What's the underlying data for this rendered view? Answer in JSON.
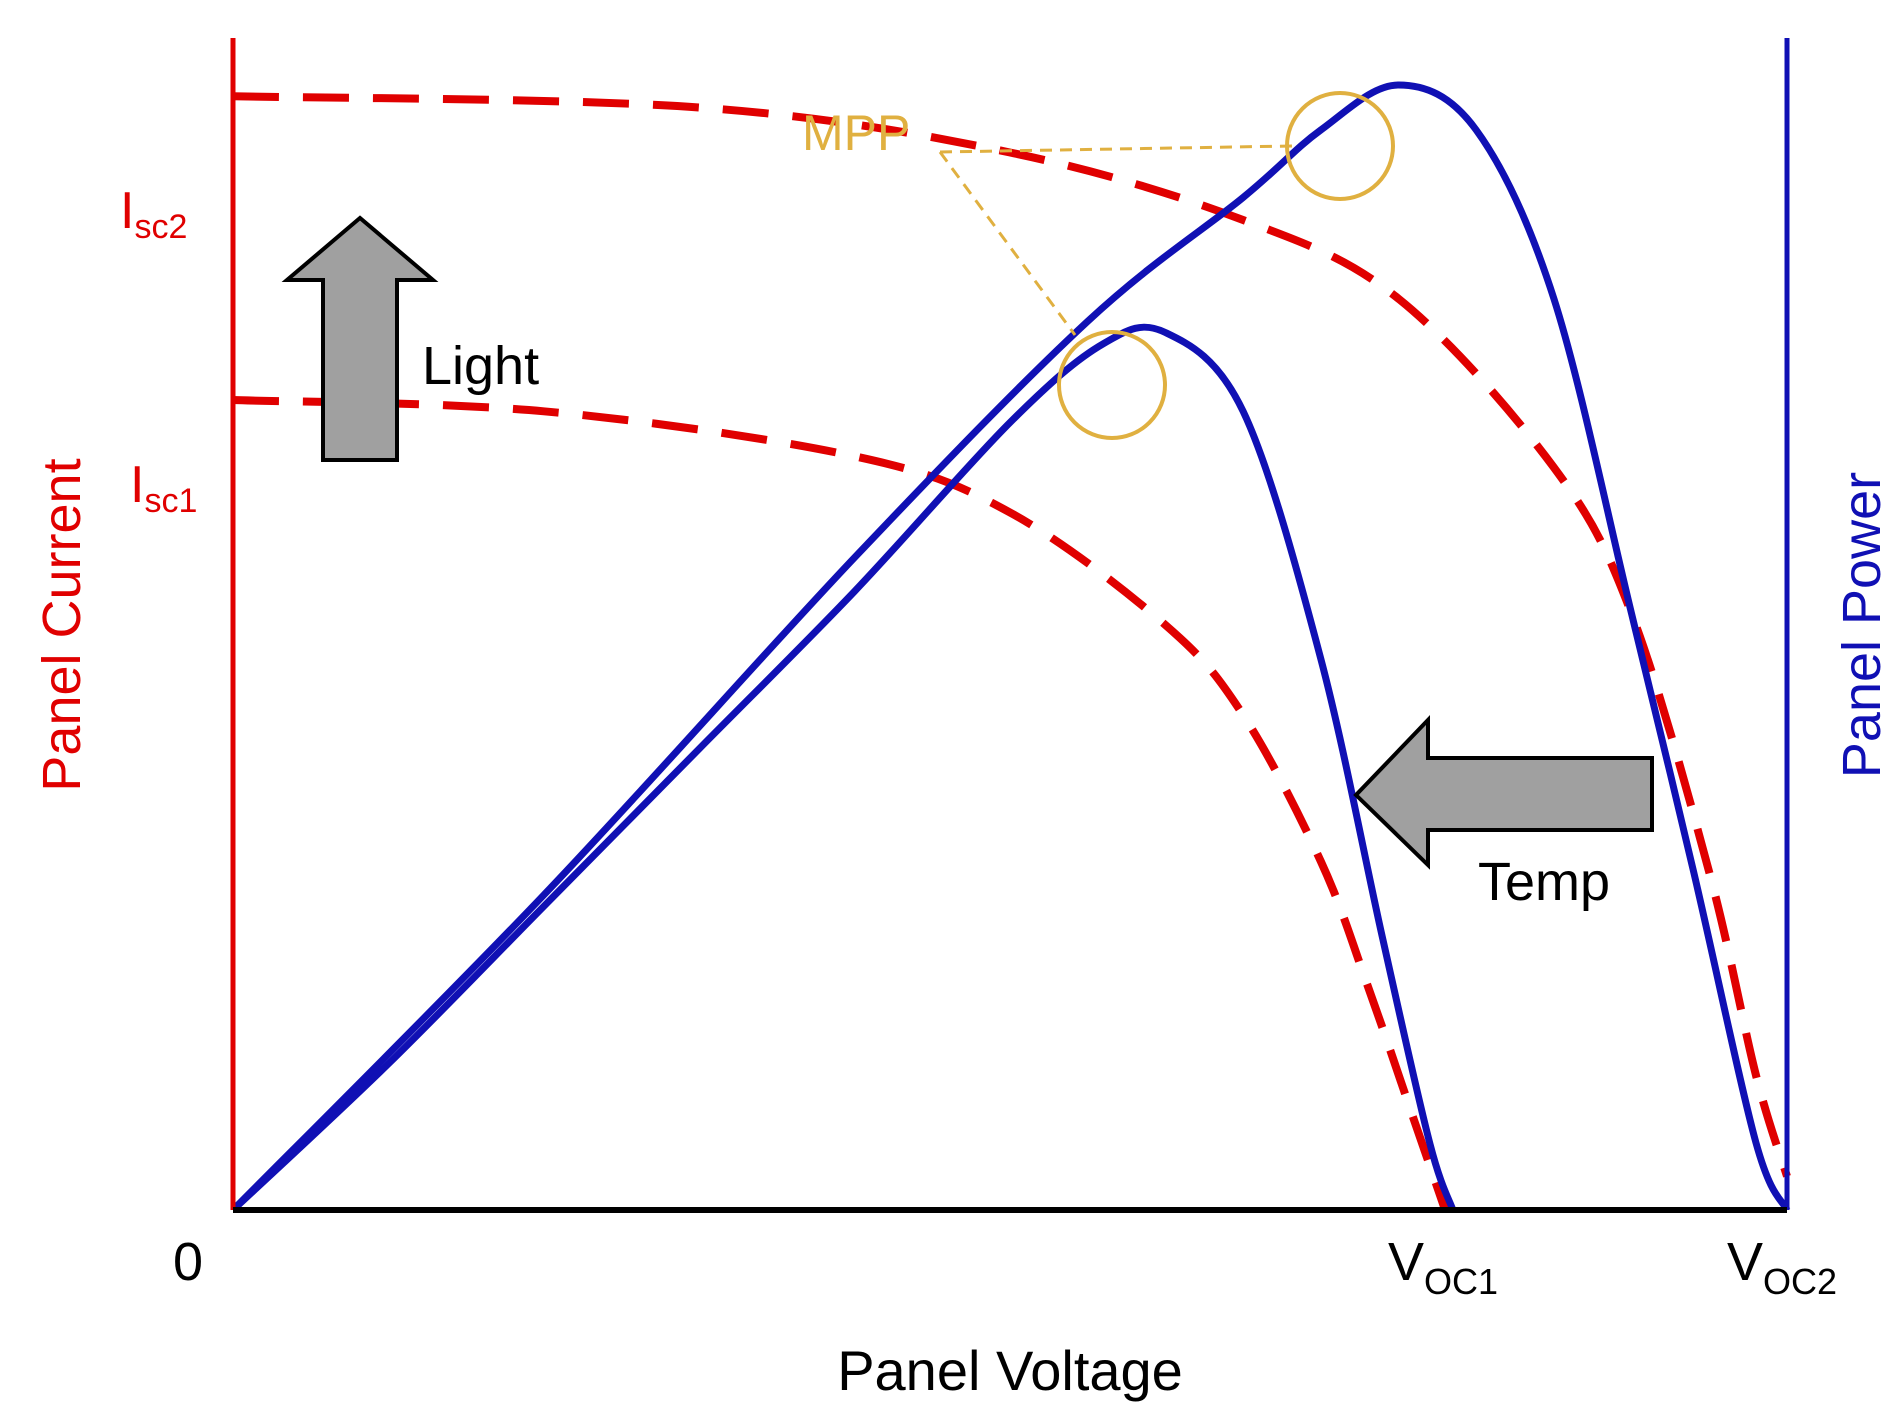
{
  "colors": {
    "current": "#e00000",
    "power": "#1010b4",
    "mpp": "#e0b040",
    "axis": "#000000",
    "arrow_fill": "#a0a0a0"
  },
  "labels": {
    "x_axis": "Panel Voltage",
    "y_left": "Panel Current",
    "y_right": "Panel Power",
    "origin": "0",
    "isc1_main": "I",
    "isc1_sub": "sc1",
    "isc2_main": "I",
    "isc2_sub": "sc2",
    "voc1_main": "V",
    "voc1_sub": "OC1",
    "voc2_main": "V",
    "voc2_sub": "OC2",
    "mpp": "MPP",
    "light": "Light",
    "temp": "Temp"
  },
  "chart_data": {
    "type": "line",
    "xlabel": "Panel Voltage",
    "ylabel": "Panel Current",
    "ylabel_right": "Panel Power",
    "xlim": [
      0,
      1
    ],
    "ylim": [
      0,
      1
    ],
    "x_ticks": [
      "0",
      "VOC1",
      "VOC2"
    ],
    "y_ticks": [
      "Isc1",
      "Isc2"
    ],
    "series": [
      {
        "style": "dashed",
        "axis": "left",
        "x": [
          0,
          0.2,
          0.4,
          0.5,
          0.6,
          0.65,
          0.7,
          0.73,
          0.76,
          0.78
        ],
        "y": [
          0.72,
          0.71,
          0.67,
          0.62,
          0.52,
          0.44,
          0.31,
          0.2,
          0.08,
          0
        ]
      },
      {
        "style": "dashed",
        "axis": "left",
        "x": [
          0,
          0.3,
          0.5,
          0.65,
          0.75,
          0.85,
          0.9,
          0.95,
          0.98,
          1.0
        ],
        "y": [
          0.99,
          0.98,
          0.94,
          0.88,
          0.81,
          0.66,
          0.53,
          0.3,
          0.12,
          0.03
        ]
      },
      {
        "style": "solid",
        "axis": "right",
        "x": [
          0,
          0.1,
          0.2,
          0.3,
          0.4,
          0.5,
          0.56,
          0.6,
          0.65,
          0.7,
          0.74,
          0.77,
          0.785
        ],
        "y": [
          0,
          0.13,
          0.27,
          0.41,
          0.55,
          0.7,
          0.77,
          0.78,
          0.71,
          0.49,
          0.24,
          0.06,
          0
        ]
      },
      {
        "style": "solid",
        "axis": "right",
        "x": [
          0,
          0.2,
          0.4,
          0.55,
          0.65,
          0.7,
          0.75,
          0.8,
          0.85,
          0.9,
          0.94,
          0.98,
          1.0
        ],
        "y": [
          0,
          0.28,
          0.58,
          0.79,
          0.9,
          0.96,
          1.0,
          0.96,
          0.81,
          0.53,
          0.3,
          0.06,
          0
        ]
      }
    ],
    "annotations": [
      {
        "text": "MPP",
        "points": [
          [
            0.75,
            1.0
          ],
          [
            0.56,
            0.77
          ]
        ]
      },
      {
        "text": "Light",
        "direction": "up"
      },
      {
        "text": "Temp",
        "direction": "left"
      }
    ],
    "grid": false
  }
}
